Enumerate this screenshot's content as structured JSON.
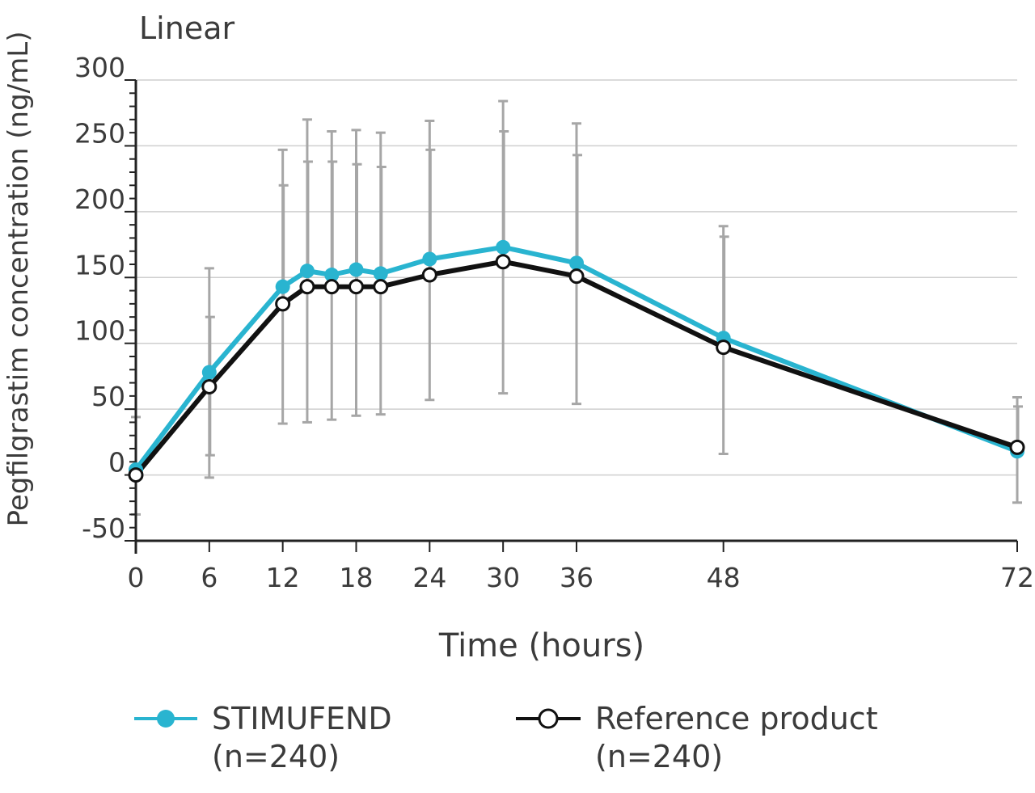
{
  "chart_data": {
    "type": "line",
    "title": "Linear",
    "xlabel": "Time (hours)",
    "ylabel": "Pegfilgrastim concentration (ng/mL)",
    "xlim": [
      0,
      72
    ],
    "ylim": [
      -50,
      300
    ],
    "x_ticks": [
      0,
      6,
      12,
      18,
      24,
      30,
      36,
      48,
      72
    ],
    "x_tick_labels": [
      "0",
      "6",
      "12",
      "18",
      "24",
      "30",
      "36",
      "48",
      "72"
    ],
    "y_ticks": [
      -50,
      0,
      50,
      100,
      150,
      200,
      250,
      300
    ],
    "y_tick_labels": [
      "-50",
      "0",
      "50",
      "100",
      "150",
      "200",
      "250",
      "300"
    ],
    "grid": true,
    "legend_position": "bottom",
    "x": [
      0,
      6,
      12,
      14,
      16,
      18,
      20,
      24,
      30,
      36,
      48,
      72
    ],
    "series": [
      {
        "name": "STIMUFEND",
        "legend_label": "STIMUFEND",
        "legend_n": "(n=240)",
        "color": "#29b4d0",
        "marker": "filled-circle",
        "values": [
          4,
          78,
          143,
          155,
          152,
          156,
          153,
          164,
          173,
          161,
          104,
          18
        ],
        "error_upper": [
          44,
          157,
          247,
          270,
          261,
          262,
          260,
          269,
          284,
          267,
          189,
          59
        ],
        "error_lower": [
          -30,
          -2,
          39,
          40,
          42,
          45,
          46,
          57,
          62,
          54,
          16,
          -21
        ]
      },
      {
        "name": "Reference product",
        "legend_label": "Reference product",
        "legend_n": "(n=240)",
        "color": "#111111",
        "marker": "open-circle",
        "values": [
          0,
          67,
          130,
          143,
          143,
          143,
          143,
          152,
          162,
          151,
          97,
          21
        ],
        "error_upper": [
          null,
          120,
          220,
          238,
          238,
          236,
          234,
          247,
          261,
          243,
          181,
          52
        ],
        "error_lower": [
          null,
          15,
          null,
          null,
          null,
          null,
          null,
          null,
          null,
          null,
          null,
          null
        ]
      }
    ],
    "error_bar_color": "#a6a6a6"
  }
}
